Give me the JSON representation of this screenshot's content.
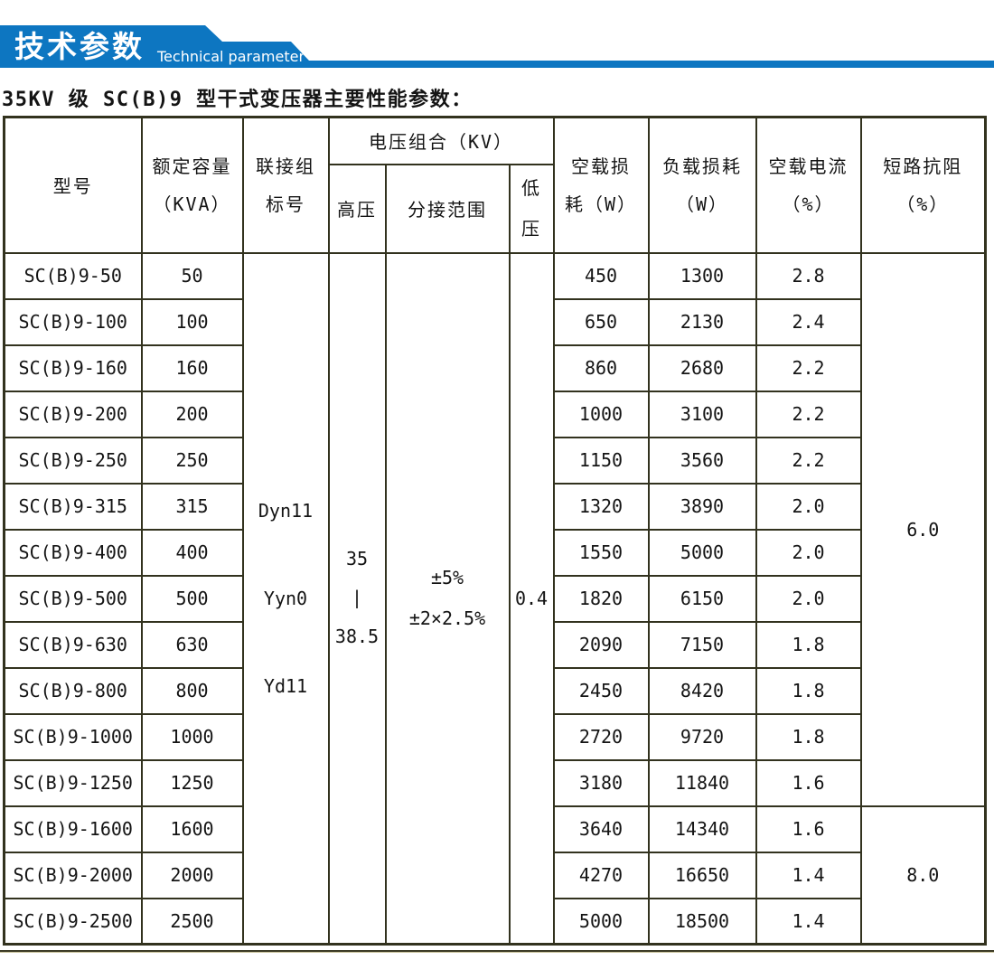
{
  "banner": {
    "title_zh": "技术参数",
    "title_en": "Technical parameter",
    "accent_color": "#0d76c1"
  },
  "caption": "35KV 级 SC(B)9 型干式变压器主要性能参数：",
  "table": {
    "headers": {
      "model": "型号",
      "capacity_l1": "额定容量",
      "capacity_l2": "（KVA）",
      "connection_l1": "联接组",
      "connection_l2": "标号",
      "voltage_combo": "电压组合（KV）",
      "hv": "高压",
      "tap_range": "分接范围",
      "lv_l1": "低",
      "lv_l2": "压",
      "no_load_loss_l1": "空载损",
      "no_load_loss_l2": "耗（W）",
      "load_loss_l1": "负载损耗",
      "load_loss_l2": "（W）",
      "no_load_current_l1": "空载电流",
      "no_load_current_l2": "（%）",
      "impedance_l1": "短路抗阻",
      "impedance_l2": "（%）"
    },
    "merged": {
      "connection_group": [
        "Dyn11",
        "Yyn0",
        "Yd11"
      ],
      "high_voltage": [
        "35",
        "|",
        "38.5"
      ],
      "tap_range": [
        "±5%",
        "±2×2.5%"
      ],
      "low_voltage": "0.4"
    },
    "impedance_spans": [
      {
        "value": "6.0",
        "from": 0,
        "rows": 12
      },
      {
        "value": "8.0",
        "from": 12,
        "rows": 3
      }
    ],
    "rows": [
      {
        "model": "SC(B)9-50",
        "kva": "50",
        "no_load_loss": "450",
        "load_loss": "1300",
        "no_load_current": "2.8"
      },
      {
        "model": "SC(B)9-100",
        "kva": "100",
        "no_load_loss": "650",
        "load_loss": "2130",
        "no_load_current": "2.4"
      },
      {
        "model": "SC(B)9-160",
        "kva": "160",
        "no_load_loss": "860",
        "load_loss": "2680",
        "no_load_current": "2.2"
      },
      {
        "model": "SC(B)9-200",
        "kva": "200",
        "no_load_loss": "1000",
        "load_loss": "3100",
        "no_load_current": "2.2"
      },
      {
        "model": "SC(B)9-250",
        "kva": "250",
        "no_load_loss": "1150",
        "load_loss": "3560",
        "no_load_current": "2.2"
      },
      {
        "model": "SC(B)9-315",
        "kva": "315",
        "no_load_loss": "1320",
        "load_loss": "3890",
        "no_load_current": "2.0"
      },
      {
        "model": "SC(B)9-400",
        "kva": "400",
        "no_load_loss": "1550",
        "load_loss": "5000",
        "no_load_current": "2.0"
      },
      {
        "model": "SC(B)9-500",
        "kva": "500",
        "no_load_loss": "1820",
        "load_loss": "6150",
        "no_load_current": "2.0"
      },
      {
        "model": "SC(B)9-630",
        "kva": "630",
        "no_load_loss": "2090",
        "load_loss": "7150",
        "no_load_current": "1.8"
      },
      {
        "model": "SC(B)9-800",
        "kva": "800",
        "no_load_loss": "2450",
        "load_loss": "8420",
        "no_load_current": "1.8"
      },
      {
        "model": "SC(B)9-1000",
        "kva": "1000",
        "no_load_loss": "2720",
        "load_loss": "9720",
        "no_load_current": "1.8"
      },
      {
        "model": "SC(B)9-1250",
        "kva": "1250",
        "no_load_loss": "3180",
        "load_loss": "11840",
        "no_load_current": "1.6"
      },
      {
        "model": "SC(B)9-1600",
        "kva": "1600",
        "no_load_loss": "3640",
        "load_loss": "14340",
        "no_load_current": "1.6"
      },
      {
        "model": "SC(B)9-2000",
        "kva": "2000",
        "no_load_loss": "4270",
        "load_loss": "16650",
        "no_load_current": "1.4"
      },
      {
        "model": "SC(B)9-2500",
        "kva": "2500",
        "no_load_loss": "5000",
        "load_loss": "18500",
        "no_load_current": "1.4"
      }
    ]
  }
}
